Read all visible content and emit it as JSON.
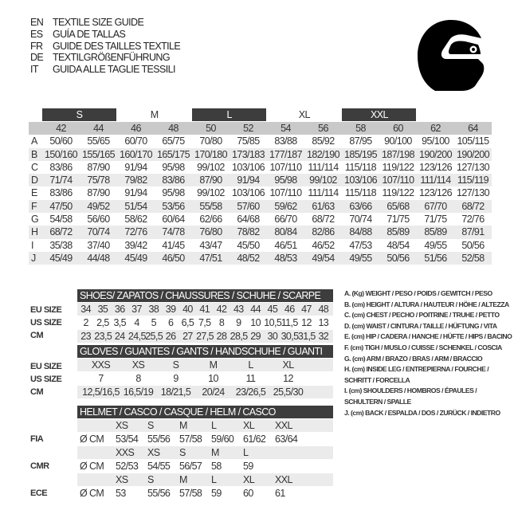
{
  "titles": [
    {
      "code": "EN",
      "text": "TEXTILE SIZE GUIDE"
    },
    {
      "code": "ES",
      "text": "GUÍA DE TALLAS"
    },
    {
      "code": "FR",
      "text": "GUIDE DES TAILLES TEXTILE"
    },
    {
      "code": "DE",
      "text": "TEXTILGRÖßENFÜHRUNG"
    },
    {
      "code": "IT",
      "text": "GUIDA ALLE TAGLIE TESSILI"
    }
  ],
  "icon": "helmet-icon",
  "colors": {
    "dark": "#3d3d3d",
    "header_gray": "#c9c9c9",
    "row_alt": "#ebebeb"
  },
  "textile": {
    "size_groups": [
      "S",
      "M",
      "L",
      "XL",
      "XXL"
    ],
    "sizes": [
      "42",
      "44",
      "46",
      "48",
      "50",
      "52",
      "54",
      "56",
      "58",
      "60",
      "62",
      "64"
    ],
    "rows": [
      {
        "label": "A",
        "values": [
          "50/60",
          "55/65",
          "60/70",
          "65/75",
          "70/80",
          "75/85",
          "83/88",
          "85/92",
          "87/95",
          "90/100",
          "95/100",
          "105/115"
        ]
      },
      {
        "label": "B",
        "values": [
          "150/160",
          "155/165",
          "160/170",
          "165/175",
          "170/180",
          "173/183",
          "177/187",
          "182/190",
          "185/195",
          "187/198",
          "190/200",
          "190/200"
        ]
      },
      {
        "label": "C",
        "values": [
          "83/86",
          "87/90",
          "91/94",
          "95/98",
          "99/102",
          "103/106",
          "107/110",
          "111/114",
          "115/118",
          "119/122",
          "123/126",
          "127/130"
        ]
      },
      {
        "label": "D",
        "values": [
          "71/74",
          "75/78",
          "79/82",
          "83/86",
          "87/90",
          "91/94",
          "95/98",
          "99/102",
          "103/106",
          "107/110",
          "111/114",
          "115/119"
        ]
      },
      {
        "label": "E",
        "values": [
          "83/86",
          "87/90",
          "91/94",
          "95/98",
          "99/102",
          "103/106",
          "107/110",
          "111/114",
          "115/118",
          "119/122",
          "123/126",
          "127/130"
        ]
      },
      {
        "label": "F",
        "values": [
          "47/50",
          "49/52",
          "51/54",
          "53/56",
          "55/58",
          "57/60",
          "59/62",
          "61/63",
          "63/66",
          "65/68",
          "67/70",
          "68/72"
        ]
      },
      {
        "label": "G",
        "values": [
          "54/58",
          "56/60",
          "58/62",
          "60/64",
          "62/66",
          "64/68",
          "66/70",
          "68/72",
          "70/74",
          "71/75",
          "71/75",
          "72/76"
        ]
      },
      {
        "label": "H",
        "values": [
          "68/72",
          "70/74",
          "72/76",
          "74/78",
          "76/80",
          "78/82",
          "80/84",
          "82/86",
          "84/88",
          "85/89",
          "85/89",
          "87/91"
        ]
      },
      {
        "label": "I",
        "values": [
          "35/38",
          "37/40",
          "39/42",
          "41/45",
          "43/47",
          "45/50",
          "46/51",
          "46/52",
          "47/53",
          "48/54",
          "49/55",
          "50/56"
        ]
      },
      {
        "label": "J",
        "values": [
          "45/49",
          "44/48",
          "45/49",
          "46/50",
          "47/51",
          "48/52",
          "48/53",
          "49/54",
          "49/55",
          "50/56",
          "51/56",
          "52/58"
        ]
      }
    ]
  },
  "shoes": {
    "title": "SHOES/ ZAPATOS / CHAUSSURES / SCHUHE / SCARPE",
    "labels": [
      "EU SIZE",
      "US SIZE",
      "CM"
    ],
    "eu": [
      "34",
      "35",
      "36",
      "37",
      "38",
      "39",
      "40",
      "41",
      "42",
      "43",
      "44",
      "45",
      "46",
      "47",
      "48"
    ],
    "us": [
      "2",
      "2,5",
      "3,5",
      "4",
      "5",
      "6",
      "6,5",
      "7,5",
      "8",
      "9",
      "10",
      "10,5",
      "11,5",
      "12",
      "13"
    ],
    "cm": [
      "23",
      "23,5",
      "24",
      "24,5",
      "25,5",
      "26",
      "27",
      "27,5",
      "28",
      "28,5",
      "29",
      "30",
      "30,5",
      "31,5",
      "32"
    ]
  },
  "gloves": {
    "title": "GLOVES / GUANTES / GANTS / HANDSCHUHE / GUANTI",
    "labels": [
      "EU SIZE",
      "US SIZE",
      "CM"
    ],
    "eu": [
      "XXS",
      "XS",
      "S",
      "M",
      "L",
      "XL"
    ],
    "us": [
      "7",
      "8",
      "9",
      "10",
      "11",
      "12"
    ],
    "cm": [
      "12,5/16,5",
      "16,5/19",
      "18/21,5",
      "20/24",
      "23/26,5",
      "25,5/30"
    ]
  },
  "helmet": {
    "title": "HELMET / CASCO / CASQUE / HELM / CASCO",
    "unit": "Ø CM",
    "standards": [
      {
        "label": "FIA",
        "sizes": [
          "XS",
          "S",
          "M",
          "L",
          "XL",
          "XXL"
        ],
        "values": [
          "53/54",
          "55/56",
          "57/58",
          "59/60",
          "61/62",
          "63/64"
        ]
      },
      {
        "label": "CMR",
        "sizes": [
          "XXS",
          "XS",
          "S",
          "M",
          "L"
        ],
        "values": [
          "52/53",
          "54/55",
          "56/57",
          "58",
          "59"
        ]
      },
      {
        "label": "ECE",
        "sizes": [
          "XS",
          "S",
          "M",
          "L",
          "XL",
          "XXL"
        ],
        "values": [
          "53",
          "55/56",
          "57/58",
          "59",
          "60",
          "61"
        ]
      }
    ]
  },
  "legend": [
    "A. (Kg) WEIGHT / PESO / POIDS / GEWITCH / PESO",
    "B. (cm) HEIGHT / ALTURA / HAUTEUR / HÖHE / ALTEZZA",
    "C. (cm) CHEST / PECHO / POITRINE / TRUHE / PETTO",
    "D. (cm) WAIST / CINTURA / TAILLE / HÜFTUNG / VITA",
    "E. (cm) HIP / CADERA / HANCHE / HÜFTE / HIPS /  BACINO",
    "F. (cm) TIGH / MUSLO / CUISSE / SCHENKEL / COSCIA",
    "G. (cm) ARM  / BRAZO / BRAS / ARM / BRACCIO",
    "H. (cm) INSIDE LEG / ENTREPIERNA / FOURCHE /",
    "SCHRITT / FORCELLA",
    "I. (cm) SHOULDERS / HOMBROS / ÉPAULES /",
    "SCHULTERN / SPALLE",
    "J. (cm) BACK / ESPALDA / DOS / ZURÜCK / INDIETRO"
  ]
}
